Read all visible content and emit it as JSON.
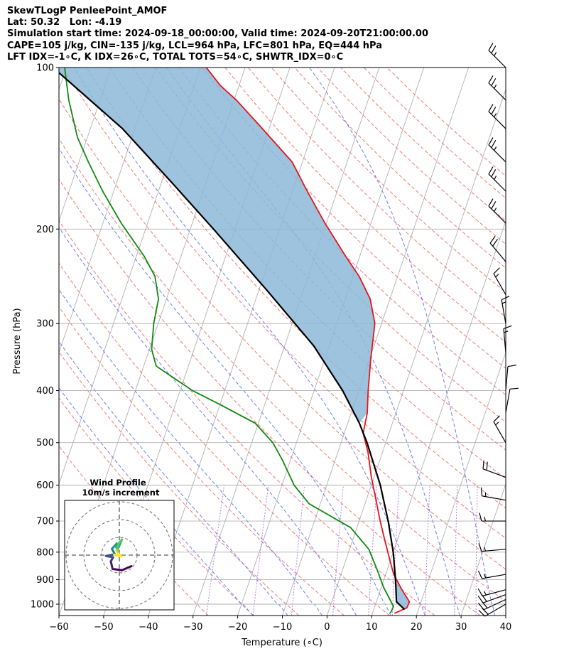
{
  "header": {
    "line1": "SkewTLogP PenleePoint_AMOF",
    "line2": "Lat: 50.32   Lon: -4.19",
    "line3": "Simulation start time: 2024-09-18_00:00:00, Valid time: 2024-09-20T21:00:00.00",
    "line4": "CAPE=105 j/kg, CIN=-135 j/kg, LCL=964 hPa, LFC=801 hPa, EQ=444 hPa",
    "line5": "LFT IDX=-1∘C, K IDX=26∘C, TOTAL TOTS=54∘C, SHWTR_IDX=0∘C"
  },
  "chart_data": [
    {
      "type": "line",
      "subtype": "skew-t log-p",
      "xlabel": "Temperature (∘C)",
      "ylabel": "Pressure (hPa)",
      "xlim": [
        -60,
        40
      ],
      "ylim": [
        1050,
        100
      ],
      "yscale": "log",
      "x_ticks": [
        "−60",
        "−50",
        "−40",
        "−30",
        "−20",
        "−10",
        "0",
        "10",
        "20",
        "30",
        "40"
      ],
      "y_ticks": [
        "1000",
        "900",
        "800",
        "700",
        "600",
        "500",
        "400",
        "300",
        "200",
        "100"
      ],
      "grid": true,
      "series": [
        {
          "role": "temperature",
          "color": "#e8141c",
          "points": [
            [
              14.9,
              1040
            ],
            [
              17.3,
              1015
            ],
            [
              17.4,
              990
            ],
            [
              14.8,
              940
            ],
            [
              11.8,
              880
            ],
            [
              10.3,
              840
            ],
            [
              7.2,
              760
            ],
            [
              4.7,
              700
            ],
            [
              2.2,
              640
            ],
            [
              -0.6,
              580
            ],
            [
              -3.3,
              520
            ],
            [
              -5.8,
              480
            ],
            [
              -6.4,
              440
            ],
            [
              -7.9,
              400
            ],
            [
              -9.7,
              350
            ],
            [
              -11.5,
              300
            ],
            [
              -14.4,
              270
            ],
            [
              -18.6,
              245
            ],
            [
              -23.1,
              225
            ],
            [
              -30.3,
              195
            ],
            [
              -36.7,
              170
            ],
            [
              -42.3,
              150
            ],
            [
              -51.5,
              130
            ],
            [
              -59.5,
              115
            ],
            [
              -64.2,
              108
            ],
            [
              -68.7,
              100
            ]
          ]
        },
        {
          "role": "dewpoint",
          "color": "#118a11",
          "points": [
            [
              14.0,
              1040
            ],
            [
              14.2,
              1010
            ],
            [
              10.5,
              930
            ],
            [
              7.6,
              860
            ],
            [
              4.3,
              790
            ],
            [
              -1.4,
              720
            ],
            [
              -12.5,
              650
            ],
            [
              -17.3,
              600
            ],
            [
              -21.7,
              540
            ],
            [
              -25.3,
              500
            ],
            [
              -30.7,
              460
            ],
            [
              -39.9,
              425
            ],
            [
              -47.2,
              400
            ],
            [
              -52.1,
              380
            ],
            [
              -57.2,
              360
            ],
            [
              -59.5,
              335
            ],
            [
              -61.0,
              300
            ],
            [
              -61.8,
              270
            ],
            [
              -64.3,
              245
            ],
            [
              -68.2,
              225
            ],
            [
              -75.9,
              195
            ],
            [
              -82.5,
              170
            ],
            [
              -87.9,
              150
            ],
            [
              -92.2,
              135
            ],
            [
              -97.0,
              115
            ],
            [
              -100.4,
              100
            ]
          ]
        },
        {
          "role": "parcel",
          "color": "#000000",
          "points": [
            [
              16.9,
              1023
            ],
            [
              14.5,
              990
            ],
            [
              12.6,
              900
            ],
            [
              10.0,
              800
            ],
            [
              6.5,
              700
            ],
            [
              2.0,
              600
            ],
            [
              -4.2,
              500
            ],
            [
              -7.4,
              460
            ],
            [
              -13.6,
              400
            ],
            [
              -23.5,
              330
            ],
            [
              -38.2,
              260
            ],
            [
              -54.8,
              200
            ],
            [
              -67.2,
              165
            ],
            [
              -82.8,
              130
            ],
            [
              -103.0,
              100
            ]
          ]
        }
      ],
      "wind_barbs": [
        {
          "p": 100,
          "speed_kt": 25,
          "dir": 315
        },
        {
          "p": 115,
          "speed_kt": 25,
          "dir": 315
        },
        {
          "p": 130,
          "speed_kt": 25,
          "dir": 315
        },
        {
          "p": 150,
          "speed_kt": 25,
          "dir": 315
        },
        {
          "p": 170,
          "speed_kt": 25,
          "dir": 315
        },
        {
          "p": 195,
          "speed_kt": 25,
          "dir": 315
        },
        {
          "p": 230,
          "speed_kt": 20,
          "dir": 320
        },
        {
          "p": 265,
          "speed_kt": 15,
          "dir": 330
        },
        {
          "p": 300,
          "speed_kt": 15,
          "dir": 350
        },
        {
          "p": 340,
          "speed_kt": 15,
          "dir": 355
        },
        {
          "p": 400,
          "speed_kt": 10,
          "dir": 5
        },
        {
          "p": 440,
          "speed_kt": 10,
          "dir": 10
        },
        {
          "p": 500,
          "speed_kt": 15,
          "dir": 330
        },
        {
          "p": 580,
          "speed_kt": 20,
          "dir": 290
        },
        {
          "p": 640,
          "speed_kt": 15,
          "dir": 280
        },
        {
          "p": 700,
          "speed_kt": 15,
          "dir": 270
        },
        {
          "p": 790,
          "speed_kt": 15,
          "dir": 265
        },
        {
          "p": 880,
          "speed_kt": 15,
          "dir": 260
        },
        {
          "p": 940,
          "speed_kt": 15,
          "dir": 255
        },
        {
          "p": 960,
          "speed_kt": 20,
          "dir": 250
        },
        {
          "p": 980,
          "speed_kt": 20,
          "dir": 245
        },
        {
          "p": 1000,
          "speed_kt": 20,
          "dir": 240
        }
      ],
      "inset": {
        "title": "Wind Profile",
        "subtitle": "10m/s increment",
        "type": "hodograph",
        "rings_mps": [
          10,
          20,
          30
        ],
        "points": [
          {
            "u": 6.8,
            "v": -6.2,
            "color": "#440154"
          },
          {
            "u": 1.5,
            "v": -8.5,
            "color": "#440154"
          },
          {
            "u": -3.8,
            "v": -7.8,
            "color": "#440154"
          },
          {
            "u": -4.8,
            "v": -3.5,
            "color": "#481a6c"
          },
          {
            "u": -3.5,
            "v": -1.2,
            "color": "#472f7d"
          },
          {
            "u": -7.5,
            "v": -0.5,
            "color": "#3b528b"
          },
          {
            "u": -2.5,
            "v": 0.5,
            "color": "#3b528b"
          },
          {
            "u": -4.2,
            "v": 3.5,
            "color": "#2c728e"
          },
          {
            "u": -1.5,
            "v": 6.5,
            "color": "#21918c"
          },
          {
            "u": -2.0,
            "v": 4.8,
            "color": "#21918c"
          },
          {
            "u": -1.0,
            "v": 3.0,
            "color": "#28ae80"
          },
          {
            "u": 1.5,
            "v": 8.8,
            "color": "#28ae80"
          },
          {
            "u": -0.5,
            "v": 6.5,
            "color": "#5ec962"
          },
          {
            "u": -1.5,
            "v": 2.8,
            "color": "#5ec962"
          },
          {
            "u": -0.5,
            "v": 1.0,
            "color": "#addc30"
          },
          {
            "u": 1.2,
            "v": -0.8,
            "color": "#fde725"
          },
          {
            "u": -3.0,
            "v": 0.3,
            "color": "#fde725"
          }
        ]
      }
    }
  ]
}
